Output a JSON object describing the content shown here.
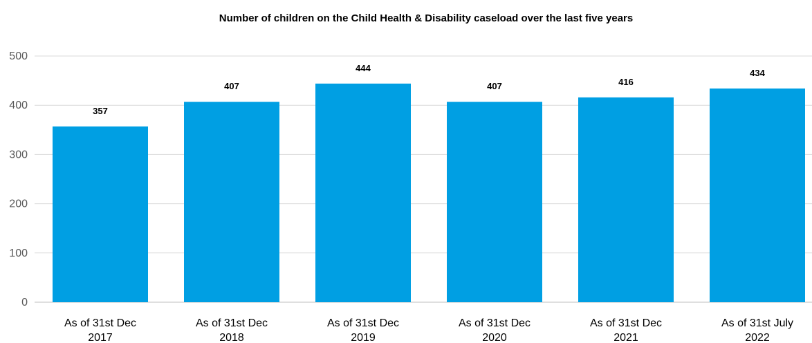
{
  "chart_data": {
    "type": "bar",
    "title": "Number of children on the Child Health & Disability caseload over the last five years",
    "xlabel": "",
    "ylabel": "",
    "categories": [
      [
        "As of 31st Dec",
        "2017"
      ],
      [
        "As of 31st Dec",
        "2018"
      ],
      [
        "As of 31st Dec",
        "2019"
      ],
      [
        "As of 31st Dec",
        "2020"
      ],
      [
        "As of 31st Dec",
        "2021"
      ],
      [
        "As of 31st July",
        "2022"
      ]
    ],
    "values": [
      357,
      407,
      444,
      407,
      416,
      434
    ],
    "ylim": [
      0,
      500
    ],
    "yticks": [
      0,
      100,
      200,
      300,
      400,
      500
    ],
    "grid": true,
    "legend": "none",
    "data_labels": true,
    "bar_color": "#009fe3"
  }
}
